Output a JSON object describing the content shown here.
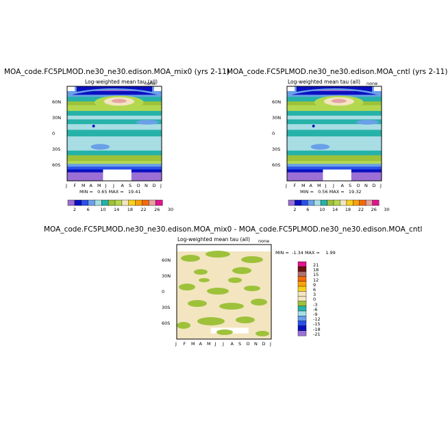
{
  "colors": {
    "seq": [
      "#9b6fd6",
      "#0a10c0",
      "#2a50e8",
      "#6aa0e8",
      "#a7dde3",
      "#26b2a8",
      "#9ec13a",
      "#b3d84f",
      "#f2e5bf",
      "#f9d01e",
      "#f7a20f",
      "#f46a0b",
      "#e5a3a3",
      "#e0148c"
    ],
    "diff": [
      "#9b6fd6",
      "#0a10c0",
      "#2a50e8",
      "#6aa0e8",
      "#a7dde3",
      "#26b2a8",
      "#9ec13a",
      "#f2e5bf",
      "#f2e5bf",
      "#f9d01e",
      "#f7a20f",
      "#f46a0b",
      "#b07070",
      "#6b1010",
      "#e0148c"
    ]
  },
  "chart_data": [
    {
      "id": "mix0",
      "type": "heatmap",
      "title": "MOA_code.FC5PLMOD.ne30_ne30.edison.MOA_mix0 (yrs 2-11)",
      "subtitle": "Log-weighted mean tau (all)",
      "units": "none",
      "x_labels": [
        "J",
        "F",
        "M",
        "A",
        "M",
        "J",
        "J",
        "A",
        "S",
        "O",
        "N",
        "D",
        "J"
      ],
      "y_labels": [
        "60N",
        "30N",
        "0",
        "30S",
        "60S"
      ],
      "y_values": [
        60,
        30,
        0,
        -30,
        -60
      ],
      "ylim": [
        -90,
        90
      ],
      "min_label": "MIN =",
      "min": "0.65",
      "max_label": "MAX =",
      "max": "19.41",
      "colorbar_labels": [
        "2",
        "6",
        "10",
        "14",
        "18",
        "22",
        "26",
        "30"
      ]
    },
    {
      "id": "cntl",
      "type": "heatmap",
      "title": "MOA_code.FC5PLMOD.ne30_ne30.edison.MOA_cntl (yrs 2-11)",
      "subtitle": "Log-weighted mean tau (all)",
      "units": "none",
      "x_labels": [
        "J",
        "F",
        "M",
        "A",
        "M",
        "J",
        "J",
        "A",
        "S",
        "O",
        "N",
        "D",
        "J"
      ],
      "y_labels": [
        "60N",
        "30N",
        "0",
        "30S",
        "60S"
      ],
      "y_values": [
        60,
        30,
        0,
        -30,
        -60
      ],
      "ylim": [
        -90,
        90
      ],
      "min_label": "MIN =",
      "min": "0.56",
      "max_label": "MAX =",
      "max": "19.32",
      "colorbar_labels": [
        "2",
        "6",
        "10",
        "14",
        "18",
        "22",
        "26",
        "30"
      ]
    },
    {
      "id": "diff",
      "type": "heatmap",
      "title": "MOA_code.FC5PLMOD.ne30_ne30.edison.MOA_mix0 - MOA_code.FC5PLMOD.ne30_ne30.edison.MOA_cntl",
      "subtitle": "Log-weighted mean tau (all)",
      "units": "none",
      "x_labels": [
        "J",
        "F",
        "M",
        "A",
        "M",
        "J",
        "J",
        "A",
        "S",
        "O",
        "N",
        "D",
        "J"
      ],
      "y_labels": [
        "60N",
        "30N",
        "0",
        "30S",
        "60S"
      ],
      "y_values": [
        60,
        30,
        0,
        -30,
        -60
      ],
      "ylim": [
        -90,
        90
      ],
      "min_label": "MIN =",
      "min": "-1.34",
      "max_label": "MAX =",
      "max": "1.99",
      "colorbar_labels": [
        "21",
        "18",
        "15",
        "12",
        "9",
        "6",
        "3",
        "0",
        "-3",
        "-6",
        "-9",
        "-12",
        "-15",
        "-18",
        "-21"
      ]
    }
  ]
}
